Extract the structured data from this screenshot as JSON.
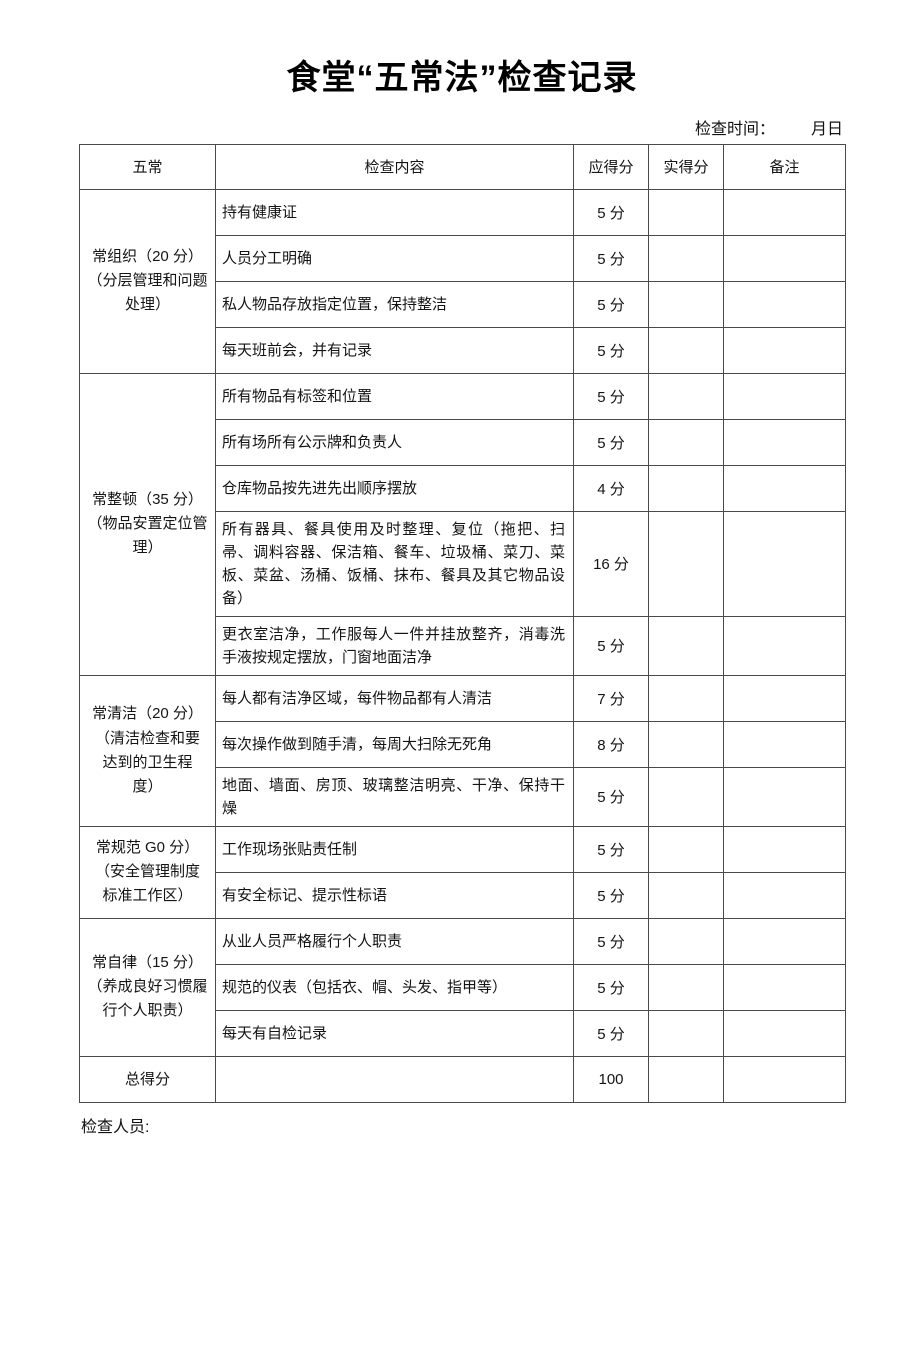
{
  "page": {
    "title": "食堂“五常法”检查记录",
    "inspection_time_label": "检查时间：",
    "inspection_time_value": "月日",
    "inspector_label": "检查人员:"
  },
  "table": {
    "headers": [
      "五常",
      "检查内容",
      "应得分",
      "实得分",
      "备注"
    ],
    "groups": [
      {
        "label_lines": [
          "常组织（20 分）",
          "（分层管理和问题",
          "处理）"
        ],
        "items": [
          {
            "content": "持有健康证",
            "score": "5 分",
            "actual": "",
            "remarks": ""
          },
          {
            "content": "人员分工明确",
            "score": "5 分",
            "actual": "",
            "remarks": ""
          },
          {
            "content": "私人物品存放指定位置，保持整洁",
            "score": "5 分",
            "actual": "",
            "remarks": ""
          },
          {
            "content": "每天班前会，并有记录",
            "score": "5 分",
            "actual": "",
            "remarks": ""
          }
        ]
      },
      {
        "label_lines": [
          "常整顿（35 分）",
          "（物品安置定位管",
          "理）"
        ],
        "items": [
          {
            "content": "所有物品有标签和位置",
            "score": "5 分",
            "actual": "",
            "remarks": ""
          },
          {
            "content": "所有场所有公示牌和负责人",
            "score": "5 分",
            "actual": "",
            "remarks": ""
          },
          {
            "content": "仓库物品按先进先出顺序摆放",
            "score": "4 分",
            "actual": "",
            "remarks": ""
          },
          {
            "content": "所有器具、餐具使用及时整理、复位（拖把、扫帚、调料容器、保洁箱、餐车、垃圾桶、菜刀、菜板、菜盆、汤桶、饭桶、抹布、餐具及其它物品设备）",
            "score": "16 分",
            "actual": "",
            "remarks": ""
          },
          {
            "content": "更衣室洁净，工作服每人一件并挂放整齐，消毒洗手液按规定摆放，门窗地面洁净",
            "score": "5 分",
            "actual": "",
            "remarks": ""
          }
        ]
      },
      {
        "label_lines": [
          "常清洁（20 分）",
          "（清洁检查和要",
          "达到的卫生程",
          "度）"
        ],
        "items": [
          {
            "content": "每人都有洁净区域，每件物品都有人清洁",
            "score": "7 分",
            "actual": "",
            "remarks": ""
          },
          {
            "content": "每次操作做到随手清，每周大扫除无死角",
            "score": "8 分",
            "actual": "",
            "remarks": ""
          },
          {
            "content": "地面、墙面、房顶、玻璃整洁明亮、干净、保持干燥",
            "score": "5 分",
            "actual": "",
            "remarks": ""
          }
        ]
      },
      {
        "label_lines": [
          "常规范 G0 分）",
          "（安全管理制度",
          "标准工作区）"
        ],
        "items": [
          {
            "content": "工作现场张贴责任制",
            "score": "5 分",
            "actual": "",
            "remarks": ""
          },
          {
            "content": "有安全标记、提示性标语",
            "score": "5 分",
            "actual": "",
            "remarks": ""
          }
        ]
      },
      {
        "label_lines": [
          "常自律（15 分）",
          "（养成良好习惯履",
          "行个人职责）"
        ],
        "items": [
          {
            "content": "从业人员严格履行个人职责",
            "score": "5 分",
            "actual": "",
            "remarks": ""
          },
          {
            "content": "规范的仪表（包括衣、帽、头发、指甲等）",
            "score": "5 分",
            "actual": "",
            "remarks": ""
          },
          {
            "content": "每天有自检记录",
            "score": "5 分",
            "actual": "",
            "remarks": ""
          }
        ]
      }
    ],
    "total_row": {
      "label": "总得分",
      "content": "",
      "score": "100",
      "actual": "",
      "remarks": ""
    }
  }
}
